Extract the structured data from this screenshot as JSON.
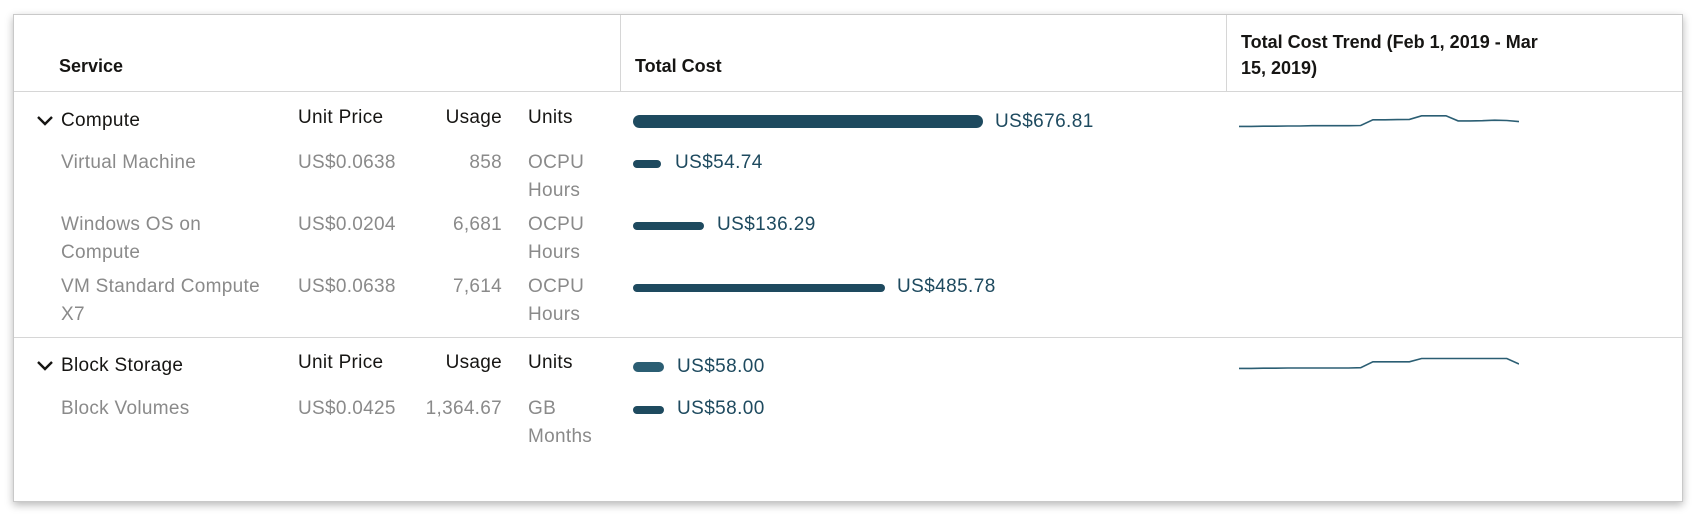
{
  "headers": {
    "service": "Service",
    "total_cost": "Total Cost",
    "trend": "Total Cost Trend (Feb 1, 2019 - Mar 15, 2019)"
  },
  "colors": {
    "bar": "#1e4a5f",
    "sparkline": "#2b5e73",
    "muted_text": "#8a8a8a"
  },
  "groups": [
    {
      "name": "Compute",
      "expanded": true,
      "col_unit_price": "Unit Price",
      "col_usage": "Usage",
      "col_units": "Units",
      "total": "US$676.81",
      "total_value": 676.81,
      "trend": [
        0.3,
        0.3,
        0.31,
        0.31,
        0.32,
        0.32,
        0.33,
        0.33,
        0.33,
        0.33,
        0.34,
        0.6,
        0.6,
        0.61,
        0.62,
        0.78,
        0.78,
        0.78,
        0.55,
        0.55,
        0.56,
        0.58,
        0.57,
        0.52
      ],
      "items": [
        {
          "name": "Virtual Machine",
          "unit_price": "US$0.0638",
          "usage": "858",
          "units": "OCPU Hours",
          "cost": "US$54.74",
          "cost_value": 54.74
        },
        {
          "name": "Windows OS on Compute",
          "unit_price": "US$0.0204",
          "usage": "6,681",
          "units": "OCPU Hours",
          "cost": "US$136.29",
          "cost_value": 136.29
        },
        {
          "name": "VM Standard Compute X7",
          "unit_price": "US$0.0638",
          "usage": "7,614",
          "units": "OCPU Hours",
          "cost": "US$485.78",
          "cost_value": 485.78
        }
      ]
    },
    {
      "name": "Block Storage",
      "expanded": true,
      "col_unit_price": "Unit Price",
      "col_usage": "Usage",
      "col_units": "Units",
      "total": "US$58.00",
      "total_value": 58.0,
      "trend": [
        0.3,
        0.3,
        0.31,
        0.31,
        0.32,
        0.32,
        0.32,
        0.32,
        0.32,
        0.32,
        0.33,
        0.6,
        0.6,
        0.6,
        0.6,
        0.75,
        0.75,
        0.75,
        0.75,
        0.75,
        0.75,
        0.75,
        0.75,
        0.5
      ],
      "items": [
        {
          "name": "Block Volumes",
          "unit_price": "US$0.0425",
          "usage": "1,364.67",
          "units": "GB Months",
          "cost": "US$58.00",
          "cost_value": 58.0
        }
      ]
    }
  ]
}
